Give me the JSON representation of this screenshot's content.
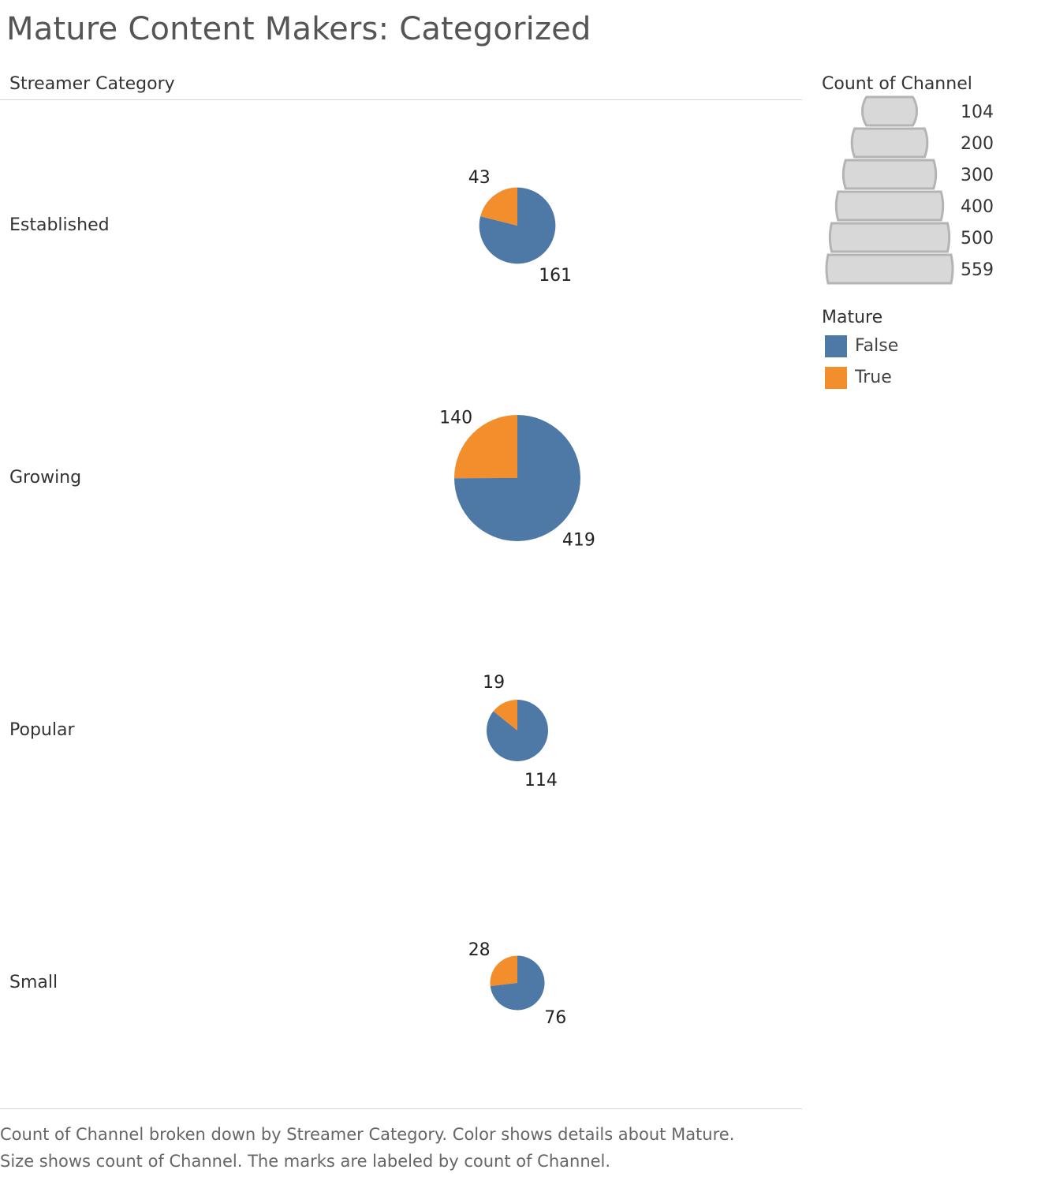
{
  "title": "Mature Content Makers: Categorized",
  "row_header": "Streamer Category",
  "size_legend": {
    "title": "Count of Channel",
    "values": [
      "104",
      "200",
      "300",
      "400",
      "500",
      "559"
    ]
  },
  "color_legend": {
    "title": "Mature",
    "items": [
      {
        "label": "False",
        "color": "#4e79a7"
      },
      {
        "label": "True",
        "color": "#f28e2b"
      }
    ]
  },
  "caption": {
    "line1": "Count of Channel broken down by Streamer Category.  Color shows details about Mature.",
    "line2": "Size shows count of Channel.  The marks are labeled by count of Channel."
  },
  "chart_data": {
    "type": "pie",
    "title": "Mature Content Makers: Categorized",
    "row_dimension": "Streamer Category",
    "color_dimension": "Mature",
    "size_measure": "Count of Channel",
    "series_colors": {
      "False": "#4e79a7",
      "True": "#f28e2b"
    },
    "categories": [
      "Established",
      "Growing",
      "Popular",
      "Small"
    ],
    "pies": [
      {
        "category": "Established",
        "slices": [
          {
            "mature": "True",
            "value": 43
          },
          {
            "mature": "False",
            "value": 161
          }
        ]
      },
      {
        "category": "Growing",
        "slices": [
          {
            "mature": "True",
            "value": 140
          },
          {
            "mature": "False",
            "value": 419
          }
        ]
      },
      {
        "category": "Popular",
        "slices": [
          {
            "mature": "True",
            "value": 19
          },
          {
            "mature": "False",
            "value": 114
          }
        ]
      },
      {
        "category": "Small",
        "slices": [
          {
            "mature": "True",
            "value": 28
          },
          {
            "mature": "False",
            "value": 76
          }
        ]
      }
    ],
    "legend_placement": "right"
  }
}
